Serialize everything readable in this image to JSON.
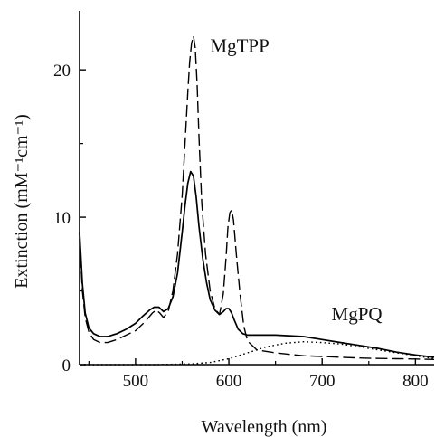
{
  "chart_data": {
    "type": "line",
    "title": "",
    "xlabel": "Wavelength (nm)",
    "ylabel": "Extinction (mM⁻¹cm⁻¹)",
    "xlim": [
      440,
      820
    ],
    "ylim": [
      0,
      24
    ],
    "xticks": [
      500,
      600,
      700,
      800
    ],
    "yticks": [
      0,
      10,
      20
    ],
    "grid": false,
    "annotations": [
      {
        "text": "MgTPP",
        "x": 580,
        "y": 21.2
      },
      {
        "text": "MgPQ",
        "x": 710,
        "y": 3.0
      }
    ],
    "series": [
      {
        "style": "solid",
        "x": [
          440,
          443,
          446,
          450,
          455,
          462,
          470,
          480,
          490,
          500,
          508,
          515,
          520,
          525,
          530,
          535,
          540,
          545,
          550,
          553,
          556,
          559,
          562,
          565,
          568,
          572,
          576,
          580,
          585,
          590,
          594,
          597,
          600,
          603,
          606,
          610,
          615,
          620,
          650,
          680,
          700,
          720,
          740,
          760,
          780,
          800,
          820
        ],
        "y": [
          9.0,
          5.5,
          3.5,
          2.5,
          2.1,
          1.9,
          1.9,
          2.1,
          2.4,
          2.8,
          3.3,
          3.7,
          3.9,
          3.9,
          3.6,
          3.8,
          4.6,
          6.2,
          9.0,
          10.8,
          12.3,
          13.1,
          12.8,
          11.4,
          9.4,
          7.2,
          5.6,
          4.4,
          3.7,
          3.4,
          3.6,
          3.8,
          3.8,
          3.5,
          3.0,
          2.4,
          2.1,
          2.0,
          2.0,
          1.9,
          1.7,
          1.5,
          1.3,
          1.1,
          0.85,
          0.65,
          0.5
        ]
      },
      {
        "style": "dashed",
        "x": [
          440,
          443,
          446,
          450,
          455,
          462,
          470,
          480,
          490,
          500,
          510,
          518,
          522,
          526,
          530,
          535,
          540,
          545,
          550,
          553,
          556,
          558,
          560,
          562,
          564,
          566,
          568,
          571,
          575,
          580,
          585,
          590,
          594,
          597,
          599,
          601,
          603,
          605,
          608,
          612,
          616,
          620,
          630,
          650,
          680,
          700,
          720,
          740,
          760,
          780,
          800,
          820
        ],
        "y": [
          8.5,
          5.0,
          3.2,
          2.2,
          1.7,
          1.5,
          1.5,
          1.7,
          2.0,
          2.3,
          2.9,
          3.5,
          3.7,
          3.5,
          3.2,
          3.6,
          5.0,
          7.5,
          11.5,
          15.0,
          18.5,
          20.5,
          21.8,
          22.3,
          21.5,
          19.0,
          15.5,
          11.0,
          7.5,
          5.0,
          3.8,
          3.4,
          4.8,
          7.3,
          9.3,
          10.3,
          10.5,
          9.8,
          7.5,
          4.8,
          2.6,
          1.6,
          1.0,
          0.8,
          0.6,
          0.55,
          0.5,
          0.45,
          0.42,
          0.4,
          0.38,
          0.35
        ]
      },
      {
        "style": "dotted",
        "x": [
          440,
          520,
          560,
          580,
          600,
          620,
          640,
          660,
          680,
          700,
          720,
          740,
          760,
          780,
          800,
          820
        ],
        "y": [
          0.0,
          0.0,
          0.05,
          0.15,
          0.4,
          0.8,
          1.2,
          1.45,
          1.55,
          1.5,
          1.4,
          1.2,
          1.0,
          0.8,
          0.6,
          0.4
        ]
      }
    ]
  }
}
